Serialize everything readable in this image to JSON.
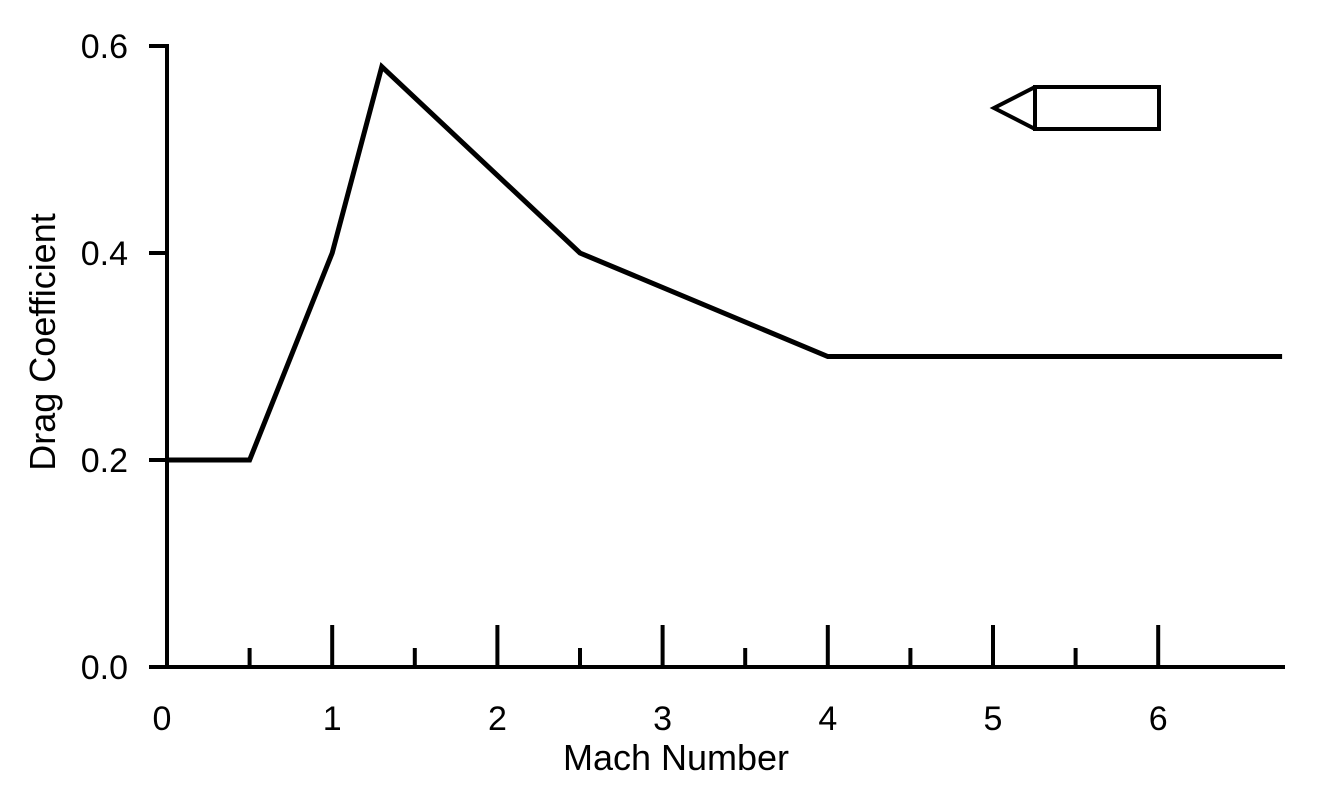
{
  "chart_data": {
    "type": "line",
    "xlabel": "Mach Number",
    "ylabel": "Drag Coefficient",
    "xlim": [
      0,
      6.75
    ],
    "ylim": [
      0,
      0.6
    ],
    "x_ticks": [
      0,
      1,
      2,
      3,
      4,
      5,
      6
    ],
    "x_tick_labels": [
      "0",
      "1",
      "2",
      "3",
      "4",
      "5",
      "6"
    ],
    "x_minor_ticks": [
      0.5,
      1.5,
      2.5,
      3.5,
      4.5,
      5.5
    ],
    "y_ticks": [
      0.0,
      0.2,
      0.4,
      0.6
    ],
    "y_tick_labels": [
      "0.0",
      "0.2",
      "0.4",
      "0.6"
    ],
    "grid": false,
    "series": [
      {
        "x": [
          0,
          0.5,
          1.0,
          1.3,
          2.5,
          4.0,
          6.75
        ],
        "y": [
          0.2,
          0.2,
          0.4,
          0.58,
          0.4,
          0.3,
          0.3
        ]
      }
    ],
    "annotations": [
      {
        "type": "icon",
        "name": "projectile-icon",
        "position": "top-right"
      }
    ],
    "colors": {
      "line": "#000000",
      "axis": "#000000",
      "background": "#ffffff"
    }
  }
}
